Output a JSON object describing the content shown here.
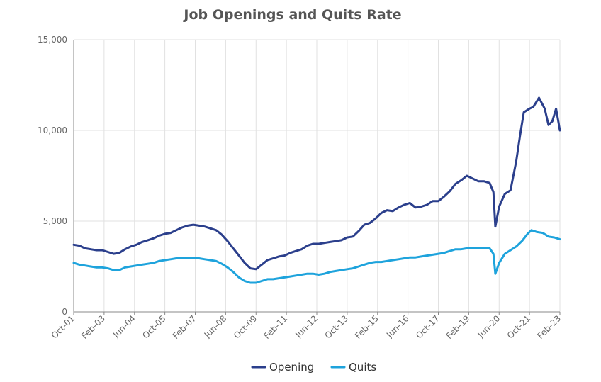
{
  "chart_data": {
    "type": "line",
    "title": "Job Openings and Quits Rate",
    "xlabel": "",
    "ylabel": "",
    "x_ticks": [
      "Oct-01",
      "Feb-03",
      "Jun-04",
      "Oct-05",
      "Feb-07",
      "Jun-08",
      "Oct-09",
      "Feb-11",
      "Jun-12",
      "Oct-13",
      "Feb-15",
      "Jun-16",
      "Oct-17",
      "Feb-19",
      "Jun-20",
      "Oct-21",
      "Feb-23"
    ],
    "y_ticks": [
      "0",
      "5,000",
      "10,000",
      "15,000"
    ],
    "ylim": [
      0,
      15000
    ],
    "xlim": [
      "2001-10",
      "2023-02"
    ],
    "grid": true,
    "legend": "bottom",
    "series": [
      {
        "name": "Opening",
        "color": "#2b3f8c",
        "points": [
          [
            "2001-10",
            3700
          ],
          [
            "2002-01",
            3650
          ],
          [
            "2002-04",
            3500
          ],
          [
            "2002-07",
            3450
          ],
          [
            "2002-10",
            3400
          ],
          [
            "2003-01",
            3400
          ],
          [
            "2003-04",
            3300
          ],
          [
            "2003-07",
            3200
          ],
          [
            "2003-10",
            3250
          ],
          [
            "2004-01",
            3450
          ],
          [
            "2004-04",
            3600
          ],
          [
            "2004-07",
            3700
          ],
          [
            "2004-10",
            3850
          ],
          [
            "2005-01",
            3950
          ],
          [
            "2005-04",
            4050
          ],
          [
            "2005-07",
            4200
          ],
          [
            "2005-10",
            4300
          ],
          [
            "2006-01",
            4350
          ],
          [
            "2006-04",
            4500
          ],
          [
            "2006-07",
            4650
          ],
          [
            "2006-10",
            4750
          ],
          [
            "2007-01",
            4800
          ],
          [
            "2007-04",
            4750
          ],
          [
            "2007-07",
            4700
          ],
          [
            "2007-10",
            4600
          ],
          [
            "2008-01",
            4500
          ],
          [
            "2008-04",
            4250
          ],
          [
            "2008-07",
            3900
          ],
          [
            "2008-10",
            3500
          ],
          [
            "2009-01",
            3100
          ],
          [
            "2009-04",
            2700
          ],
          [
            "2009-07",
            2400
          ],
          [
            "2009-10",
            2350
          ],
          [
            "2010-01",
            2600
          ],
          [
            "2010-04",
            2850
          ],
          [
            "2010-07",
            2950
          ],
          [
            "2010-10",
            3050
          ],
          [
            "2011-01",
            3100
          ],
          [
            "2011-04",
            3250
          ],
          [
            "2011-07",
            3350
          ],
          [
            "2011-10",
            3450
          ],
          [
            "2012-01",
            3650
          ],
          [
            "2012-04",
            3750
          ],
          [
            "2012-07",
            3750
          ],
          [
            "2012-10",
            3800
          ],
          [
            "2013-01",
            3850
          ],
          [
            "2013-04",
            3900
          ],
          [
            "2013-07",
            3950
          ],
          [
            "2013-10",
            4100
          ],
          [
            "2014-01",
            4150
          ],
          [
            "2014-04",
            4450
          ],
          [
            "2014-07",
            4800
          ],
          [
            "2014-10",
            4900
          ],
          [
            "2015-01",
            5150
          ],
          [
            "2015-04",
            5450
          ],
          [
            "2015-07",
            5600
          ],
          [
            "2015-10",
            5550
          ],
          [
            "2016-01",
            5750
          ],
          [
            "2016-04",
            5900
          ],
          [
            "2016-07",
            6000
          ],
          [
            "2016-10",
            5750
          ],
          [
            "2017-01",
            5800
          ],
          [
            "2017-04",
            5900
          ],
          [
            "2017-07",
            6100
          ],
          [
            "2017-10",
            6100
          ],
          [
            "2018-01",
            6350
          ],
          [
            "2018-04",
            6650
          ],
          [
            "2018-07",
            7050
          ],
          [
            "2018-10",
            7250
          ],
          [
            "2019-01",
            7500
          ],
          [
            "2019-04",
            7350
          ],
          [
            "2019-07",
            7200
          ],
          [
            "2019-10",
            7200
          ],
          [
            "2020-01",
            7100
          ],
          [
            "2020-03",
            6600
          ],
          [
            "2020-04",
            4700
          ],
          [
            "2020-06",
            5800
          ],
          [
            "2020-09",
            6500
          ],
          [
            "2020-12",
            6700
          ],
          [
            "2021-03",
            8300
          ],
          [
            "2021-05",
            9700
          ],
          [
            "2021-07",
            11000
          ],
          [
            "2021-10",
            11200
          ],
          [
            "2021-12",
            11300
          ],
          [
            "2022-03",
            11800
          ],
          [
            "2022-06",
            11200
          ],
          [
            "2022-08",
            10300
          ],
          [
            "2022-10",
            10500
          ],
          [
            "2022-12",
            11200
          ],
          [
            "2023-02",
            10000
          ]
        ]
      },
      {
        "name": "Quits",
        "color": "#1ea3dc",
        "points": [
          [
            "2001-10",
            2700
          ],
          [
            "2002-01",
            2600
          ],
          [
            "2002-04",
            2550
          ],
          [
            "2002-07",
            2500
          ],
          [
            "2002-10",
            2450
          ],
          [
            "2003-01",
            2450
          ],
          [
            "2003-04",
            2400
          ],
          [
            "2003-07",
            2300
          ],
          [
            "2003-10",
            2300
          ],
          [
            "2004-01",
            2450
          ],
          [
            "2004-04",
            2500
          ],
          [
            "2004-07",
            2550
          ],
          [
            "2004-10",
            2600
          ],
          [
            "2005-01",
            2650
          ],
          [
            "2005-04",
            2700
          ],
          [
            "2005-07",
            2800
          ],
          [
            "2005-10",
            2850
          ],
          [
            "2006-01",
            2900
          ],
          [
            "2006-04",
            2950
          ],
          [
            "2006-07",
            2950
          ],
          [
            "2006-10",
            2950
          ],
          [
            "2007-01",
            2950
          ],
          [
            "2007-04",
            2950
          ],
          [
            "2007-07",
            2900
          ],
          [
            "2007-10",
            2850
          ],
          [
            "2008-01",
            2800
          ],
          [
            "2008-04",
            2650
          ],
          [
            "2008-07",
            2450
          ],
          [
            "2008-10",
            2200
          ],
          [
            "2009-01",
            1900
          ],
          [
            "2009-04",
            1700
          ],
          [
            "2009-07",
            1600
          ],
          [
            "2009-10",
            1600
          ],
          [
            "2010-01",
            1700
          ],
          [
            "2010-04",
            1800
          ],
          [
            "2010-07",
            1800
          ],
          [
            "2010-10",
            1850
          ],
          [
            "2011-01",
            1900
          ],
          [
            "2011-04",
            1950
          ],
          [
            "2011-07",
            2000
          ],
          [
            "2011-10",
            2050
          ],
          [
            "2012-01",
            2100
          ],
          [
            "2012-04",
            2100
          ],
          [
            "2012-07",
            2050
          ],
          [
            "2012-10",
            2100
          ],
          [
            "2013-01",
            2200
          ],
          [
            "2013-04",
            2250
          ],
          [
            "2013-07",
            2300
          ],
          [
            "2013-10",
            2350
          ],
          [
            "2014-01",
            2400
          ],
          [
            "2014-04",
            2500
          ],
          [
            "2014-07",
            2600
          ],
          [
            "2014-10",
            2700
          ],
          [
            "2015-01",
            2750
          ],
          [
            "2015-04",
            2750
          ],
          [
            "2015-07",
            2800
          ],
          [
            "2015-10",
            2850
          ],
          [
            "2016-01",
            2900
          ],
          [
            "2016-04",
            2950
          ],
          [
            "2016-07",
            3000
          ],
          [
            "2016-10",
            3000
          ],
          [
            "2017-01",
            3050
          ],
          [
            "2017-04",
            3100
          ],
          [
            "2017-07",
            3150
          ],
          [
            "2017-10",
            3200
          ],
          [
            "2018-01",
            3250
          ],
          [
            "2018-04",
            3350
          ],
          [
            "2018-07",
            3450
          ],
          [
            "2018-10",
            3450
          ],
          [
            "2019-01",
            3500
          ],
          [
            "2019-04",
            3500
          ],
          [
            "2019-07",
            3500
          ],
          [
            "2019-10",
            3500
          ],
          [
            "2020-01",
            3500
          ],
          [
            "2020-03",
            3200
          ],
          [
            "2020-04",
            2100
          ],
          [
            "2020-06",
            2700
          ],
          [
            "2020-09",
            3200
          ],
          [
            "2020-12",
            3400
          ],
          [
            "2021-03",
            3600
          ],
          [
            "2021-06",
            3900
          ],
          [
            "2021-09",
            4300
          ],
          [
            "2021-11",
            4500
          ],
          [
            "2022-02",
            4400
          ],
          [
            "2022-05",
            4350
          ],
          [
            "2022-08",
            4150
          ],
          [
            "2022-11",
            4100
          ],
          [
            "2023-02",
            4000
          ]
        ]
      }
    ]
  }
}
